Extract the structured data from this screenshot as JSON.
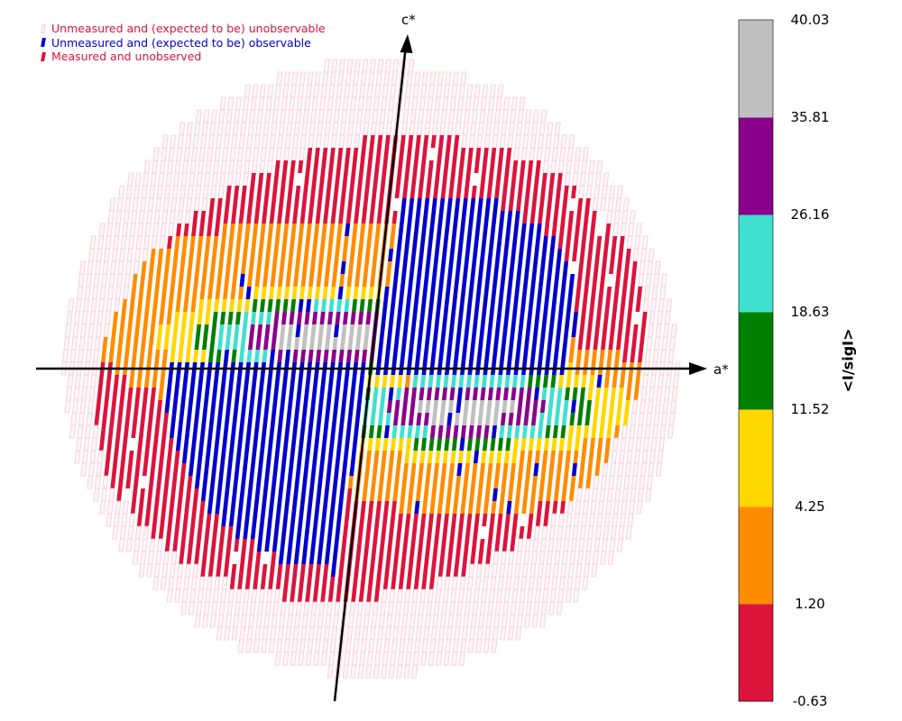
{
  "legend": [
    {
      "label": "Unmeasured and (expected to be) unobservable",
      "swatch_color": "#f7c9d4",
      "swatch_style": "outline",
      "text_color": "#dc143c"
    },
    {
      "label": "Unmeasured and (expected to be) observable",
      "swatch_color": "#0000cd",
      "swatch_style": "solid",
      "text_color": "#0000cd"
    },
    {
      "label": "Measured and unobserved",
      "swatch_color": "#dc143c",
      "swatch_style": "solid",
      "text_color": "#dc143c"
    }
  ],
  "axes": {
    "x_label": "a*",
    "y_label": "c*"
  },
  "colorbar": {
    "title": "<I/sigI>",
    "ticks": [
      "40.03",
      "35.81",
      "26.16",
      "18.63",
      "11.52",
      "4.25",
      "1.20",
      "-0.63"
    ],
    "bins": [
      {
        "range": [
          "-0.63",
          "1.20"
        ],
        "color": "#dc143c"
      },
      {
        "range": [
          "1.20",
          "4.25"
        ],
        "color": "#ff8c00"
      },
      {
        "range": [
          "4.25",
          "11.52"
        ],
        "color": "#ffd700"
      },
      {
        "range": [
          "11.52",
          "18.63"
        ],
        "color": "#008000"
      },
      {
        "range": [
          "18.63",
          "26.16"
        ],
        "color": "#40e0d0"
      },
      {
        "range": [
          "26.16",
          "35.81"
        ],
        "color": "#8b008b"
      },
      {
        "range": [
          "35.81",
          "40.03"
        ],
        "color": "#c0c0c0"
      }
    ]
  },
  "chart_data": {
    "type": "heatmap",
    "description_kind": "reciprocal lattice slice (h0l) of mean I/sigI per reflection",
    "x_axis": "a*",
    "y_axis": "c*",
    "categories": [
      "Unmeasured and (expected to be) unobservable",
      "Unmeasured and (expected to be) observable",
      "Measured and unobserved",
      "-0.63 – 1.20",
      "1.20 – 4.25",
      "4.25 – 11.52",
      "11.52 – 18.63",
      "18.63 – 26.16",
      "26.16 – 35.81",
      "35.81 – 40.03"
    ],
    "colors": {
      "unobservable": "#f7c9d4",
      "observable_unmeasured": "#0000cd",
      "measured_unobserved": "#dc143c",
      "bin_1_20": "#ff8c00",
      "bin_4_25": "#ffd700",
      "bin_11_52": "#008000",
      "bin_18_63": "#40e0d0",
      "bin_26_16": "#8b008b",
      "bin_35_81": "#c0c0c0"
    }
  }
}
